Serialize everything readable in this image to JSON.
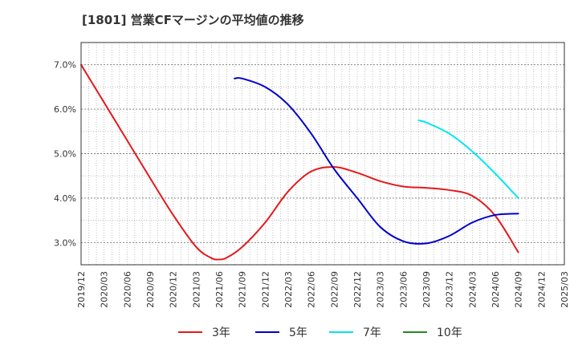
{
  "chart_data": {
    "type": "line",
    "title": "[1801]  営業CFマージンの平均値の推移",
    "xlabel": "",
    "ylabel": "",
    "x_ticks": [
      "2019/12",
      "2020/03",
      "2020/06",
      "2020/09",
      "2020/12",
      "2021/03",
      "2021/06",
      "2021/09",
      "2021/12",
      "2022/03",
      "2022/06",
      "2022/09",
      "2022/12",
      "2023/03",
      "2023/06",
      "2023/09",
      "2023/12",
      "2024/03",
      "2024/06",
      "2024/09",
      "2024/12",
      "2025/03"
    ],
    "y_ticks": [
      "3.0%",
      "4.0%",
      "5.0%",
      "6.0%",
      "7.0%"
    ],
    "y_tick_values": [
      3.0,
      4.0,
      5.0,
      6.0,
      7.0
    ],
    "ylim": [
      2.5,
      7.5
    ],
    "grid": true,
    "legend_position": "bottom",
    "series": [
      {
        "name": "3年",
        "color": "#e31a1c",
        "x": [
          "2019/12",
          "2020/03",
          "2020/06",
          "2020/09",
          "2020/12",
          "2021/03",
          "2021/05",
          "2021/06",
          "2021/07",
          "2021/09",
          "2021/12",
          "2022/03",
          "2022/06",
          "2022/09",
          "2022/12",
          "2023/03",
          "2023/06",
          "2023/09",
          "2023/12",
          "2024/03",
          "2024/06",
          "2024/09"
        ],
        "values": [
          7.0,
          6.15,
          5.3,
          4.45,
          3.62,
          2.9,
          2.65,
          2.62,
          2.66,
          2.9,
          3.45,
          4.15,
          4.6,
          4.7,
          4.57,
          4.38,
          4.26,
          4.23,
          4.18,
          4.05,
          3.6,
          2.78
        ]
      },
      {
        "name": "5年",
        "color": "#0000cc",
        "x": [
          "2021/08",
          "2021/09",
          "2021/12",
          "2022/03",
          "2022/06",
          "2022/09",
          "2022/12",
          "2023/03",
          "2023/06",
          "2023/09",
          "2023/12",
          "2024/03",
          "2024/06",
          "2024/09"
        ],
        "values": [
          6.69,
          6.69,
          6.5,
          6.1,
          5.45,
          4.65,
          4.0,
          3.35,
          3.03,
          2.98,
          3.15,
          3.45,
          3.62,
          3.65
        ]
      },
      {
        "name": "7年",
        "color": "#00e5ee",
        "x": [
          "2023/08",
          "2023/09",
          "2023/12",
          "2024/03",
          "2024/06",
          "2024/09"
        ],
        "values": [
          5.75,
          5.7,
          5.45,
          5.05,
          4.55,
          4.0
        ]
      },
      {
        "name": "10年",
        "color": "#228b22",
        "x": [],
        "values": []
      }
    ]
  }
}
